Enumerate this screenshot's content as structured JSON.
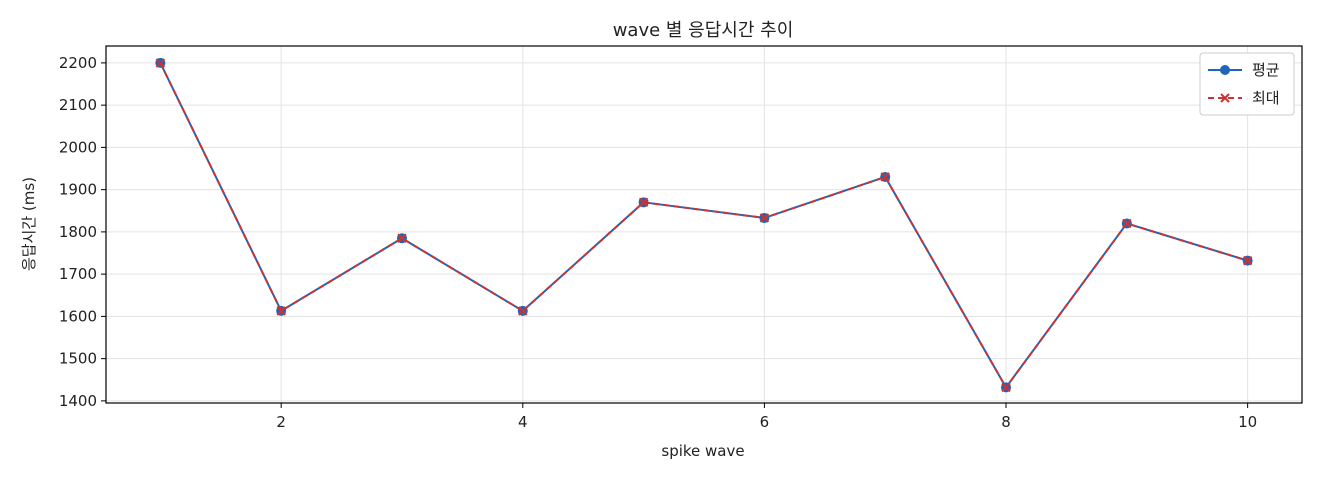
{
  "chart_data": {
    "type": "line",
    "title": "wave 별 응답시간 추이",
    "xlabel": "spike wave",
    "ylabel": "응답시간 (ms)",
    "x": [
      1,
      2,
      3,
      4,
      5,
      6,
      7,
      8,
      9,
      10
    ],
    "xticks": [
      2,
      4,
      6,
      8,
      10
    ],
    "yticks": [
      1400,
      1500,
      1600,
      1700,
      1800,
      1900,
      2000,
      2100,
      2200
    ],
    "xlim": [
      0.55,
      10.45
    ],
    "ylim": [
      1395,
      2240
    ],
    "grid": true,
    "legend_position": "top-right",
    "series": [
      {
        "name": "평균",
        "marker": "circle",
        "line_style": "solid",
        "color": "#1f66b8",
        "values": [
          2200,
          1613,
          1785,
          1613,
          1870,
          1833,
          1930,
          1432,
          1820,
          1732
        ]
      },
      {
        "name": "최대",
        "marker": "x",
        "line_style": "dashed",
        "color": "#cc3333",
        "values": [
          2200,
          1613,
          1785,
          1613,
          1870,
          1833,
          1930,
          1432,
          1820,
          1732
        ]
      }
    ]
  }
}
